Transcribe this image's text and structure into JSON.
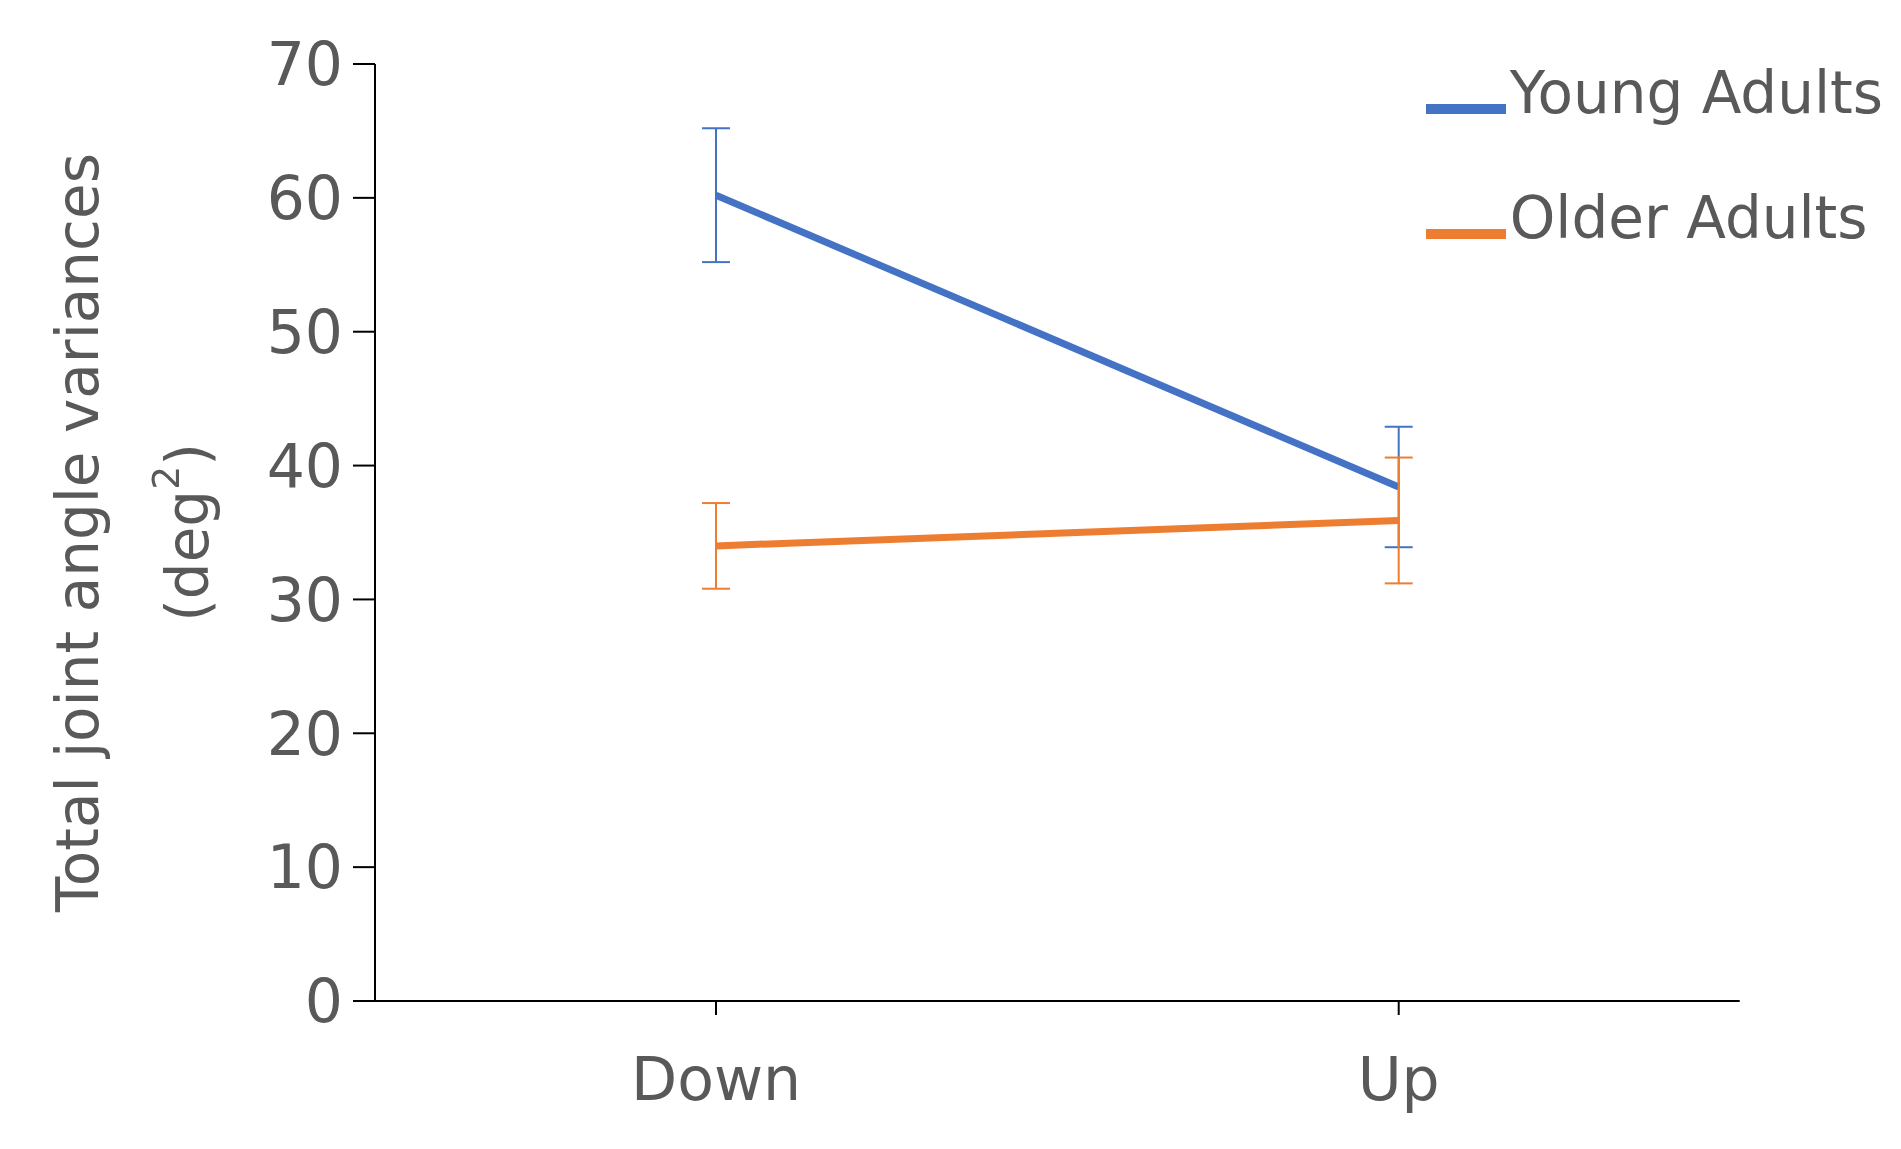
{
  "chart_data": {
    "type": "line",
    "categories": [
      "Down",
      "Up"
    ],
    "ylabel": "Total joint angle variances (deg$^{2}$)",
    "ylim": [
      0,
      70
    ],
    "yticks": [
      0,
      10,
      20,
      30,
      40,
      50,
      60,
      70
    ],
    "grid": false,
    "legend": "top right",
    "marker": "none",
    "line_style": "solid",
    "series": [
      {
        "name": "Young Adults",
        "color": "#4472c4",
        "values": [
          60.2,
          38.4
        ],
        "errors": [
          5,
          4.5
        ]
      },
      {
        "name": "Older Adults",
        "color": "#ed7d31",
        "values": [
          34,
          35.9
        ],
        "errors": [
          3.2,
          4.7
        ]
      }
    ]
  }
}
